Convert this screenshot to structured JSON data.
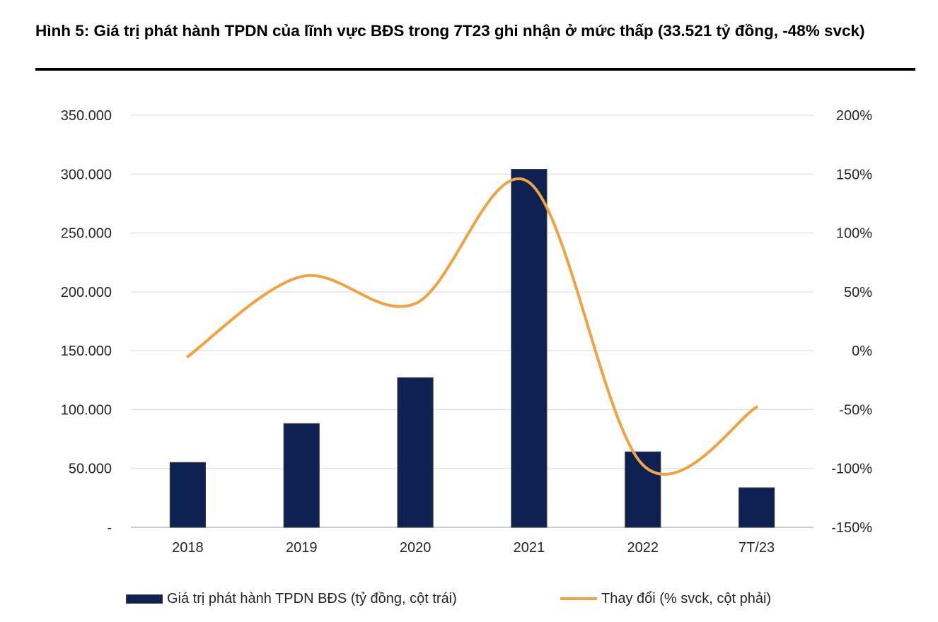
{
  "figure": {
    "title": "Hình 5: Giá trị phát hành TPDN của lĩnh vực BĐS trong 7T23 ghi nhận ở mức thấp (33.521 tỷ đồng, -48% svck)"
  },
  "chart_data": {
    "type": "bar+line",
    "categories": [
      "2018",
      "2019",
      "2020",
      "2021",
      "2022",
      "7T/23"
    ],
    "series": [
      {
        "name": "Giá trị phát hành TPDN BĐS (tỷ đồng, cột trái)",
        "type": "bar",
        "axis": "left",
        "color": "#0e2153",
        "values": [
          55000,
          88000,
          127000,
          304000,
          64000,
          33521
        ]
      },
      {
        "name": "Thay đổi (% svck, cột phải)",
        "type": "line",
        "axis": "right",
        "color": "#f0a340",
        "smooth": true,
        "values": [
          -5,
          63,
          40,
          143,
          -97,
          -48
        ]
      }
    ],
    "y_left": {
      "min": 0,
      "max": 350000,
      "ticks": [
        {
          "value": 0,
          "label": "-"
        },
        {
          "value": 50000,
          "label": "50.000"
        },
        {
          "value": 100000,
          "label": "100.000"
        },
        {
          "value": 150000,
          "label": "150.000"
        },
        {
          "value": 200000,
          "label": "200.000"
        },
        {
          "value": 250000,
          "label": "250.000"
        },
        {
          "value": 300000,
          "label": "300.000"
        },
        {
          "value": 350000,
          "label": "350.000"
        }
      ]
    },
    "y_right": {
      "min": -150,
      "max": 200,
      "ticks": [
        {
          "value": -150,
          "label": "-150%"
        },
        {
          "value": -100,
          "label": "-100%"
        },
        {
          "value": -50,
          "label": "-50%"
        },
        {
          "value": 0,
          "label": "0%"
        },
        {
          "value": 50,
          "label": "50%"
        },
        {
          "value": 100,
          "label": "100%"
        },
        {
          "value": 150,
          "label": "150%"
        },
        {
          "value": 200,
          "label": "200%"
        }
      ]
    },
    "grid": true,
    "legend_position": "bottom"
  }
}
